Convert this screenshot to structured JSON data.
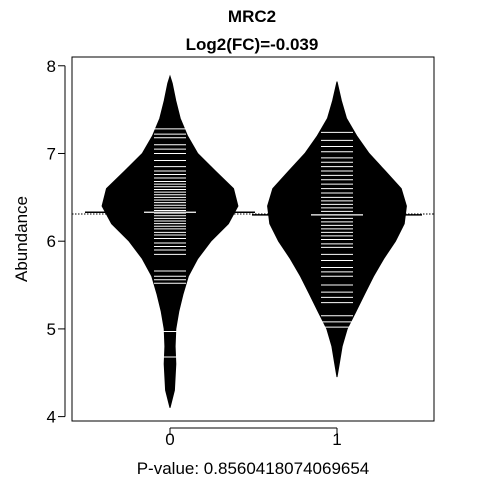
{
  "chart_data": {
    "type": "beanplot",
    "title": "MRC2",
    "subtitle": "Log2(FC)=-0.039",
    "xlabel": "P-value: 0.8560418074069654",
    "ylabel": "Abundance",
    "ylim": [
      3.95,
      8.1
    ],
    "yticks": [
      4,
      5,
      6,
      7,
      8
    ],
    "categories": [
      "0",
      "1"
    ],
    "overall_mean": 6.31,
    "colors": {
      "bean": "#000000",
      "line": "#ffffff",
      "background": "#ffffff"
    },
    "series": [
      {
        "category": "0",
        "mean": 6.33,
        "density": [
          [
            4.1,
            0.0
          ],
          [
            4.3,
            0.06
          ],
          [
            4.6,
            0.08
          ],
          [
            4.8,
            0.07
          ],
          [
            5.0,
            0.08
          ],
          [
            5.2,
            0.12
          ],
          [
            5.4,
            0.18
          ],
          [
            5.6,
            0.25
          ],
          [
            5.8,
            0.38
          ],
          [
            6.0,
            0.56
          ],
          [
            6.2,
            0.8
          ],
          [
            6.4,
            0.93
          ],
          [
            6.6,
            0.87
          ],
          [
            6.8,
            0.62
          ],
          [
            7.0,
            0.38
          ],
          [
            7.2,
            0.24
          ],
          [
            7.4,
            0.14
          ],
          [
            7.6,
            0.08
          ],
          [
            7.8,
            0.03
          ],
          [
            7.88,
            0.0
          ]
        ],
        "points": [
          4.68,
          4.97,
          5.52,
          5.56,
          5.6,
          5.66,
          5.85,
          5.9,
          5.94,
          5.98,
          6.03,
          6.07,
          6.1,
          6.14,
          6.17,
          6.2,
          6.23,
          6.26,
          6.29,
          6.32,
          6.35,
          6.38,
          6.41,
          6.44,
          6.47,
          6.5,
          6.53,
          6.56,
          6.59,
          6.62,
          6.65,
          6.68,
          6.72,
          6.76,
          6.8,
          6.85,
          6.92,
          7.0,
          7.05,
          7.1,
          7.18,
          7.22,
          7.28
        ]
      },
      {
        "category": "1",
        "mean": 6.3,
        "density": [
          [
            4.45,
            0.0
          ],
          [
            4.6,
            0.03
          ],
          [
            4.8,
            0.07
          ],
          [
            5.0,
            0.14
          ],
          [
            5.2,
            0.26
          ],
          [
            5.4,
            0.38
          ],
          [
            5.6,
            0.5
          ],
          [
            5.8,
            0.64
          ],
          [
            6.0,
            0.8
          ],
          [
            6.2,
            0.92
          ],
          [
            6.4,
            0.95
          ],
          [
            6.6,
            0.88
          ],
          [
            6.8,
            0.66
          ],
          [
            7.0,
            0.44
          ],
          [
            7.2,
            0.27
          ],
          [
            7.4,
            0.13
          ],
          [
            7.6,
            0.06
          ],
          [
            7.82,
            0.0
          ]
        ],
        "points": [
          5.02,
          5.08,
          5.15,
          5.3,
          5.36,
          5.42,
          5.5,
          5.6,
          5.65,
          5.7,
          5.78,
          5.85,
          5.93,
          5.97,
          6.02,
          6.06,
          6.1,
          6.14,
          6.18,
          6.22,
          6.26,
          6.3,
          6.34,
          6.38,
          6.42,
          6.46,
          6.5,
          6.55,
          6.6,
          6.65,
          6.7,
          6.75,
          6.8,
          6.85,
          6.9,
          6.95,
          7.02,
          7.08,
          7.15,
          7.24
        ]
      }
    ]
  }
}
